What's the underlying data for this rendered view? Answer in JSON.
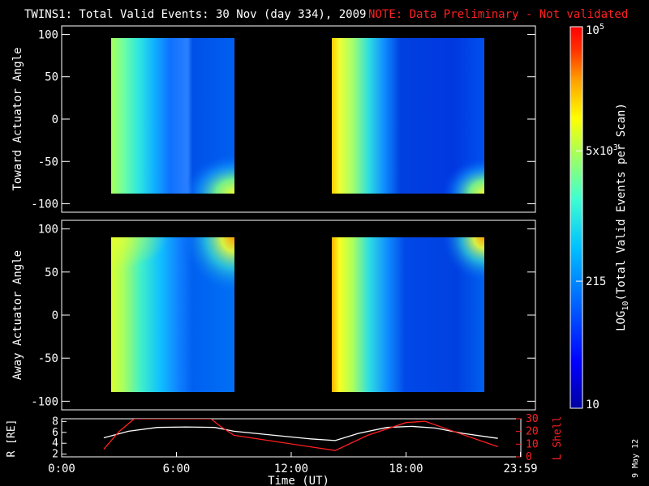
{
  "title": {
    "main": "TWINS1: Total Valid Events: 30 Nov (day 334), 2009",
    "note": "NOTE: Data Preliminary - Not validated",
    "note_color": "#ff2020"
  },
  "side_date": "9 May 12",
  "colorbar": {
    "label": "LOG10(Total Valid Events per Scan)",
    "label_prefix": "LOG",
    "label_sub": "10",
    "label_suffix": "(Total Valid Events per Scan)",
    "ticks": [
      "10",
      "215",
      "5x10^3",
      "10^5"
    ],
    "tick_values": [
      10,
      215,
      5000,
      100000
    ],
    "scale": "log",
    "range": [
      10,
      100000
    ],
    "colors": [
      "#0000a0",
      "#0000ff",
      "#0060ff",
      "#00c0ff",
      "#40ffd0",
      "#a0ff60",
      "#ffff00",
      "#ffa000",
      "#ff3000",
      "#ff0000"
    ]
  },
  "chart_data": [
    {
      "type": "heatmap",
      "name": "toward",
      "ylabel": "Toward Actuator Angle",
      "ylim": [
        -110,
        110
      ],
      "yticks": [
        -100,
        -50,
        0,
        50,
        100
      ],
      "xlim_hours": [
        0,
        24
      ],
      "blocks": [
        {
          "start": "2:15",
          "end": "9:00",
          "angle_range": [
            -88,
            90
          ]
        },
        {
          "start": "14:20",
          "end": "23:00",
          "angle_range": [
            -88,
            90
          ]
        }
      ]
    },
    {
      "type": "heatmap",
      "name": "away",
      "ylabel": "Away Actuator Angle",
      "ylim": [
        -110,
        110
      ],
      "yticks": [
        -100,
        -50,
        0,
        50,
        100
      ],
      "xlim_hours": [
        0,
        24
      ],
      "blocks": [
        {
          "start": "2:15",
          "end": "9:00",
          "angle_range": [
            -88,
            90
          ]
        },
        {
          "start": "14:20",
          "end": "23:00",
          "angle_range": [
            -88,
            90
          ]
        }
      ]
    },
    {
      "type": "line",
      "name": "orbit",
      "ylabel_left": "R [RE]",
      "ylabel_right": "L Shell",
      "yticks_left": [
        2,
        4,
        6,
        8
      ],
      "yticks_right": [
        0,
        10,
        20,
        30
      ],
      "ylim_left": [
        1.5,
        8.5
      ],
      "ylim_right": [
        0,
        30
      ],
      "xlabel": "Time (UT)",
      "xticks": [
        "0:00",
        "6:00",
        "12:00",
        "18:00",
        "23:59"
      ],
      "series": [
        {
          "name": "R",
          "axis": "left",
          "color": "#ffffff",
          "x": [
            2.2,
            3.5,
            5.0,
            6.5,
            8.0,
            9.0,
            11.0,
            13.0,
            14.3,
            15.5,
            17.0,
            18.3,
            19.5,
            21.0,
            22.8
          ],
          "y": [
            5.0,
            6.2,
            6.9,
            7.0,
            6.9,
            6.2,
            5.5,
            4.8,
            4.5,
            5.8,
            6.9,
            7.1,
            6.8,
            5.8,
            4.9
          ]
        },
        {
          "name": "L",
          "axis": "right",
          "color": "#ff2020",
          "x": [
            2.2,
            3.0,
            3.8,
            7.8,
            8.3,
            9.0,
            14.3,
            16.0,
            18.0,
            19.0,
            20.5,
            22.8
          ],
          "y": [
            6,
            20,
            30,
            30,
            24,
            17,
            5,
            17,
            27,
            28,
            20,
            8
          ]
        }
      ]
    }
  ]
}
